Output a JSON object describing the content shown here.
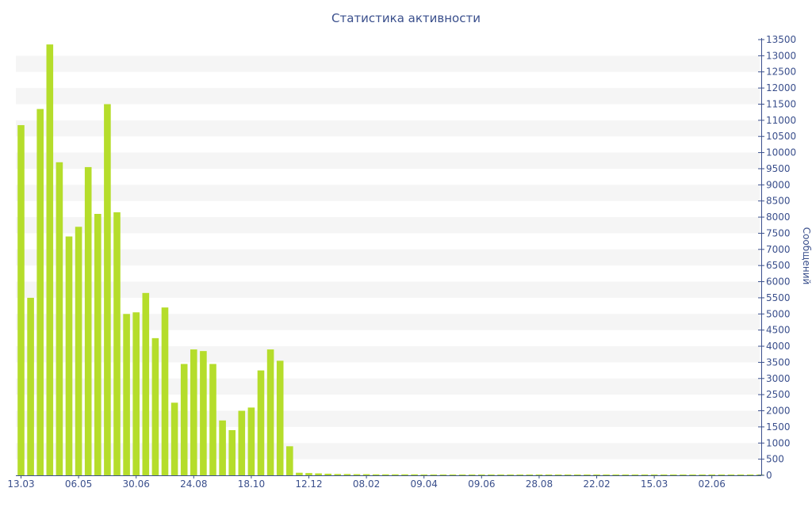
{
  "chart_data": {
    "type": "bar",
    "title": "Статистика активности",
    "xlabel": "",
    "ylabel": "Сообщений",
    "ylim": [
      0,
      13500
    ],
    "ystep": 500,
    "y_axis_side": "right",
    "grid": "alternating horizontal bands",
    "bar_color": "#b5dd2b",
    "band_color": "#f5f5f5",
    "text_color": "#3a4f8c",
    "x_tick_labels": [
      "13.03",
      "06.05",
      "30.06",
      "24.08",
      "18.10",
      "12.12",
      "08.02",
      "09.04",
      "09.06",
      "28.08",
      "22.02",
      "15.03",
      "02.06"
    ],
    "x_tick_every": 6,
    "values": [
      10850,
      5500,
      11350,
      13350,
      9700,
      7400,
      7700,
      9550,
      8100,
      11500,
      8150,
      5000,
      5050,
      5650,
      4250,
      5200,
      2250,
      3450,
      3900,
      3850,
      3450,
      1700,
      1400,
      2000,
      2100,
      3250,
      3900,
      3550,
      900,
      80,
      70,
      60,
      50,
      40,
      40,
      35,
      35,
      30,
      30,
      30,
      30,
      30,
      25,
      25,
      25,
      25,
      25,
      25,
      25,
      25,
      25,
      25,
      25,
      25,
      25,
      25,
      25,
      25,
      25,
      25,
      25,
      25,
      25,
      25,
      25,
      25,
      25,
      25,
      25,
      25,
      25,
      25,
      25,
      25,
      25,
      25,
      25,
      25
    ]
  }
}
